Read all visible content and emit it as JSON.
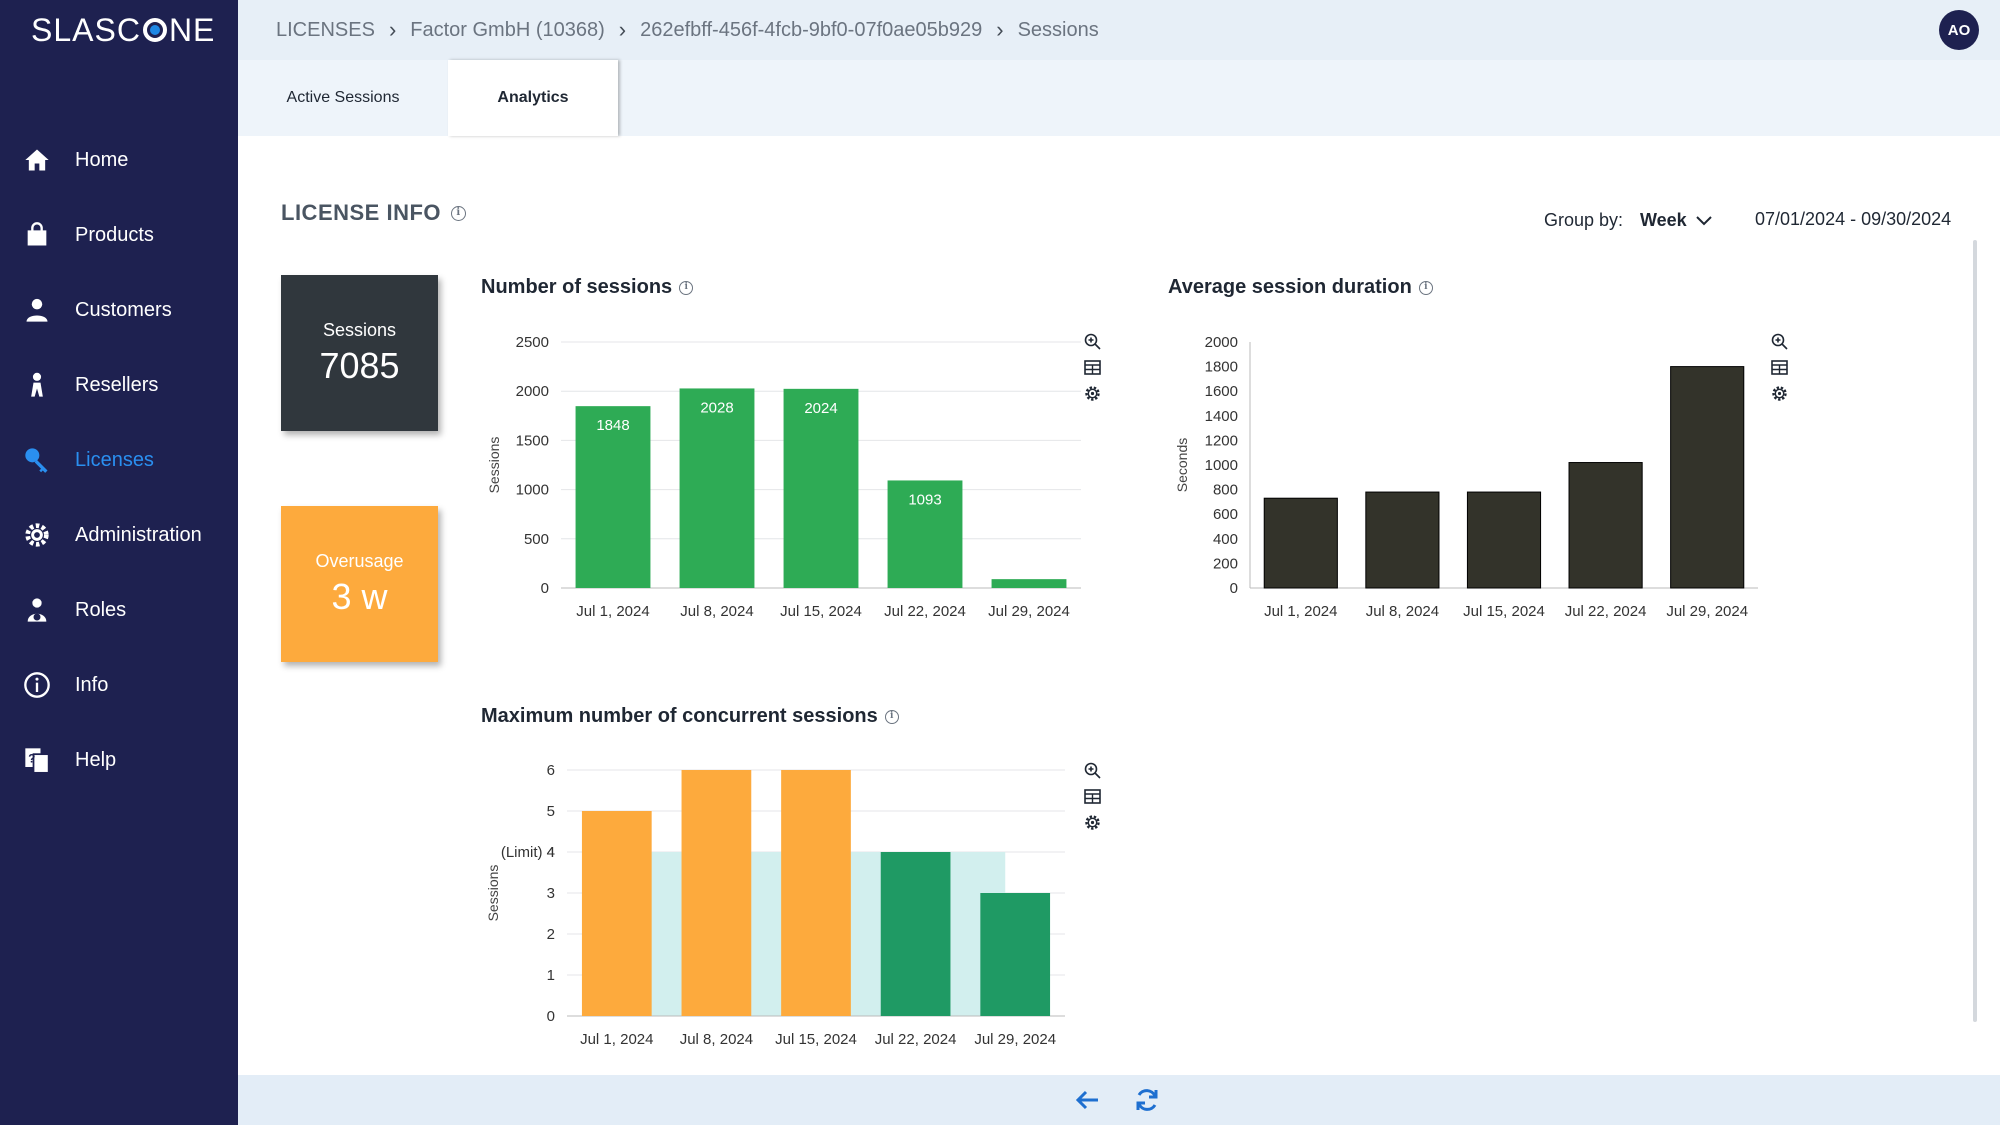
{
  "app": {
    "logo_text_left": "SLASC",
    "logo_text_right": "NE"
  },
  "sidebar": {
    "items": [
      {
        "label": "Home",
        "icon": "home-icon",
        "active": false
      },
      {
        "label": "Products",
        "icon": "shopping-bag-icon",
        "active": false
      },
      {
        "label": "Customers",
        "icon": "customer-icon",
        "active": false
      },
      {
        "label": "Resellers",
        "icon": "reseller-icon",
        "active": false
      },
      {
        "label": "Licenses",
        "icon": "key-icon",
        "active": true
      },
      {
        "label": "Administration",
        "icon": "gear-icon",
        "active": false
      },
      {
        "label": "Roles",
        "icon": "roles-icon",
        "active": false
      },
      {
        "label": "Info",
        "icon": "info-icon",
        "active": false
      },
      {
        "label": "Help",
        "icon": "help-icon",
        "active": false
      }
    ]
  },
  "breadcrumb": {
    "items": [
      "LICENSES",
      "Factor GmbH (10368)",
      "262efbff-456f-4fcb-9bf0-07f0ae05b929",
      "Sessions"
    ]
  },
  "user": {
    "initials": "AO"
  },
  "tabs": [
    {
      "label": "Active Sessions",
      "active": false
    },
    {
      "label": "Analytics",
      "active": true
    }
  ],
  "license_info": {
    "title": "LICENSE INFO",
    "group_by_label": "Group by:",
    "group_by_value": "Week",
    "date_range": "07/01/2024 - 09/30/2024"
  },
  "kpis": {
    "sessions": {
      "label": "Sessions",
      "value": "7085"
    },
    "overusage": {
      "label": "Overusage",
      "value": "3 w"
    }
  },
  "colors": {
    "sidebar_bg": "#1e2150",
    "active_nav": "#2a8ff0",
    "sessions_bar": "#2eab55",
    "duration_bar": "#33332a",
    "overusage_bar": "#fdaa3d",
    "within_limit_bar": "#1f9a64",
    "limit_band": "#d2efee"
  },
  "chart_data": [
    {
      "type": "bar",
      "title": "Number of sessions",
      "ylabel": "Sessions",
      "categories": [
        "Jul 1, 2024",
        "Jul 8, 2024",
        "Jul 15, 2024",
        "Jul 22, 2024",
        "Jul 29, 2024"
      ],
      "values": [
        1848,
        2028,
        2024,
        1093,
        90
      ],
      "data_labels": [
        "1848",
        "2028",
        "2024",
        "1093",
        ""
      ],
      "ylim": [
        0,
        2500
      ],
      "yticks": [
        "0",
        "500",
        "1000",
        "1500",
        "2000",
        "2500"
      ],
      "grid": true
    },
    {
      "type": "bar",
      "title": "Average session duration",
      "ylabel": "Seconds",
      "categories": [
        "Jul 1, 2024",
        "Jul 8, 2024",
        "Jul 15, 2024",
        "Jul 22, 2024",
        "Jul 29, 2024"
      ],
      "values": [
        730,
        780,
        780,
        1020,
        1800
      ],
      "ylim": [
        0,
        2000
      ],
      "yticks": [
        "0",
        "200",
        "400",
        "600",
        "800",
        "1000",
        "1200",
        "1400",
        "1600",
        "1800",
        "2000"
      ],
      "grid": false
    },
    {
      "type": "bar",
      "title": "Maximum number of concurrent sessions",
      "ylabel": "Sessions",
      "categories": [
        "Jul 1, 2024",
        "Jul 8, 2024",
        "Jul 15, 2024",
        "Jul 22, 2024",
        "Jul 29, 2024"
      ],
      "values": [
        5,
        6,
        6,
        4,
        3
      ],
      "limit": 4,
      "limit_label": "(Limit) 4",
      "ylim": [
        0,
        6
      ],
      "yticks": [
        "0",
        "1",
        "2",
        "3",
        "4",
        "5",
        "6"
      ],
      "grid": true
    }
  ]
}
